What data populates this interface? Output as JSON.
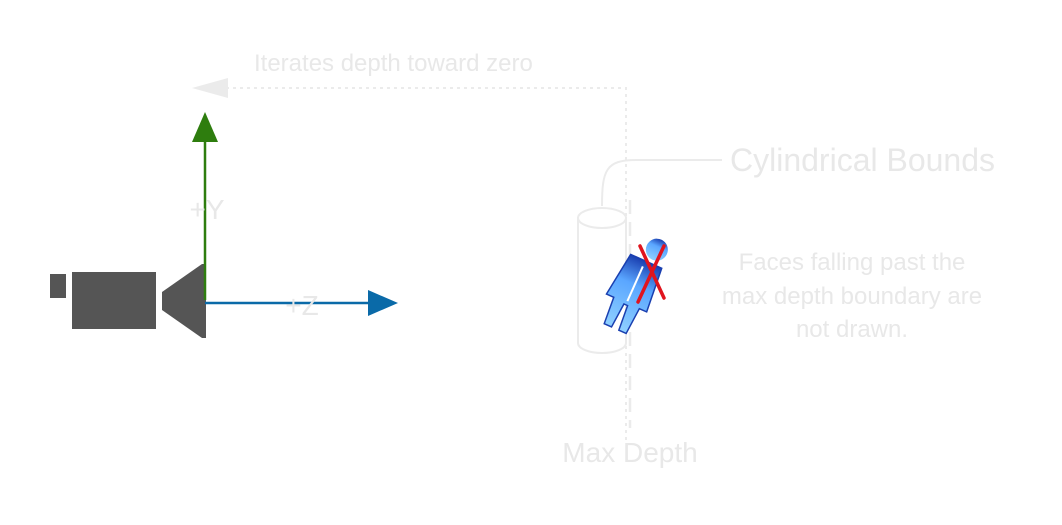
{
  "labels": {
    "iterates": "Iterates depth toward zero",
    "cylindrical_bounds": "Cylindrical Bounds",
    "plus_y": "+Y",
    "plus_z": "+Z",
    "max_depth": "Max Depth",
    "faces_note": [
      "Faces falling past the",
      "max depth boundary are",
      "not drawn."
    ]
  },
  "colors": {
    "y_axis": "#2e7d0e",
    "z_axis": "#0a6aa8",
    "camera": "#555555",
    "faint_text": "#e8e8e8",
    "faint_line": "#ebebeb",
    "cross": "#e0141e",
    "figure_light": "#6ab8ff",
    "figure_dark": "#1a3fb0"
  },
  "icons": {
    "camera": "video-camera-icon",
    "figure": "person-figure-icon",
    "cross": "red-x-icon"
  }
}
